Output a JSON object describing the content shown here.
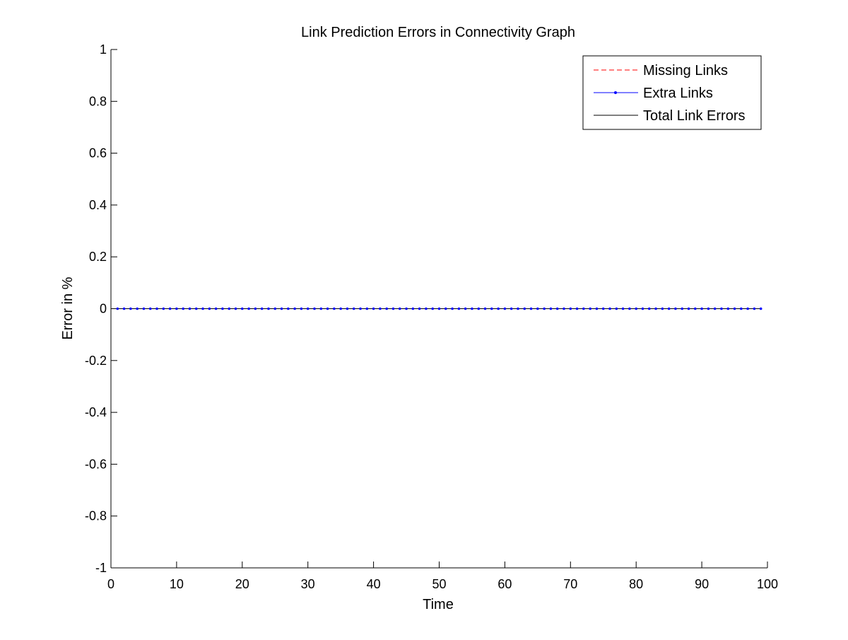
{
  "chart_data": {
    "type": "line",
    "title": "Link Prediction Errors in Connectivity Graph",
    "xlabel": "Time",
    "ylabel": "Error in %",
    "xlim": [
      0,
      100
    ],
    "ylim": [
      -1,
      1
    ],
    "xticks": [
      0,
      10,
      20,
      30,
      40,
      50,
      60,
      70,
      80,
      90,
      100
    ],
    "yticks": [
      -1,
      -0.8,
      -0.6,
      -0.4,
      -0.2,
      0,
      0.2,
      0.4,
      0.6,
      0.8,
      1
    ],
    "xtick_labels": [
      "0",
      "10",
      "20",
      "30",
      "40",
      "50",
      "60",
      "70",
      "80",
      "90",
      "100"
    ],
    "ytick_labels": [
      "-1",
      "-0.8",
      "-0.6",
      "-0.4",
      "-0.2",
      "0",
      "0.2",
      "0.4",
      "0.6",
      "0.8",
      "1"
    ],
    "grid": false,
    "legend_position": "top-right",
    "x": [
      1,
      2,
      3,
      4,
      5,
      6,
      7,
      8,
      9,
      10,
      11,
      12,
      13,
      14,
      15,
      16,
      17,
      18,
      19,
      20,
      21,
      22,
      23,
      24,
      25,
      26,
      27,
      28,
      29,
      30,
      31,
      32,
      33,
      34,
      35,
      36,
      37,
      38,
      39,
      40,
      41,
      42,
      43,
      44,
      45,
      46,
      47,
      48,
      49,
      50,
      51,
      52,
      53,
      54,
      55,
      56,
      57,
      58,
      59,
      60,
      61,
      62,
      63,
      64,
      65,
      66,
      67,
      68,
      69,
      70,
      71,
      72,
      73,
      74,
      75,
      76,
      77,
      78,
      79,
      80,
      81,
      82,
      83,
      84,
      85,
      86,
      87,
      88,
      89,
      90,
      91,
      92,
      93,
      94,
      95,
      96,
      97,
      98,
      99
    ],
    "series": [
      {
        "name": "Missing Links",
        "color": "#ff0000",
        "line_style": "dashed",
        "marker": "none",
        "values": [
          0,
          0,
          0,
          0,
          0,
          0,
          0,
          0,
          0,
          0,
          0,
          0,
          0,
          0,
          0,
          0,
          0,
          0,
          0,
          0,
          0,
          0,
          0,
          0,
          0,
          0,
          0,
          0,
          0,
          0,
          0,
          0,
          0,
          0,
          0,
          0,
          0,
          0,
          0,
          0,
          0,
          0,
          0,
          0,
          0,
          0,
          0,
          0,
          0,
          0,
          0,
          0,
          0,
          0,
          0,
          0,
          0,
          0,
          0,
          0,
          0,
          0,
          0,
          0,
          0,
          0,
          0,
          0,
          0,
          0,
          0,
          0,
          0,
          0,
          0,
          0,
          0,
          0,
          0,
          0,
          0,
          0,
          0,
          0,
          0,
          0,
          0,
          0,
          0,
          0,
          0,
          0,
          0,
          0,
          0,
          0,
          0,
          0,
          0
        ]
      },
      {
        "name": "Extra Links",
        "color": "#0000ff",
        "line_style": "solid",
        "marker": "dot",
        "values": [
          0,
          0,
          0,
          0,
          0,
          0,
          0,
          0,
          0,
          0,
          0,
          0,
          0,
          0,
          0,
          0,
          0,
          0,
          0,
          0,
          0,
          0,
          0,
          0,
          0,
          0,
          0,
          0,
          0,
          0,
          0,
          0,
          0,
          0,
          0,
          0,
          0,
          0,
          0,
          0,
          0,
          0,
          0,
          0,
          0,
          0,
          0,
          0,
          0,
          0,
          0,
          0,
          0,
          0,
          0,
          0,
          0,
          0,
          0,
          0,
          0,
          0,
          0,
          0,
          0,
          0,
          0,
          0,
          0,
          0,
          0,
          0,
          0,
          0,
          0,
          0,
          0,
          0,
          0,
          0,
          0,
          0,
          0,
          0,
          0,
          0,
          0,
          0,
          0,
          0,
          0,
          0,
          0,
          0,
          0,
          0,
          0,
          0,
          0
        ]
      },
      {
        "name": "Total Link Errors",
        "color": "#000000",
        "line_style": "solid",
        "marker": "none",
        "values": [
          0,
          0,
          0,
          0,
          0,
          0,
          0,
          0,
          0,
          0,
          0,
          0,
          0,
          0,
          0,
          0,
          0,
          0,
          0,
          0,
          0,
          0,
          0,
          0,
          0,
          0,
          0,
          0,
          0,
          0,
          0,
          0,
          0,
          0,
          0,
          0,
          0,
          0,
          0,
          0,
          0,
          0,
          0,
          0,
          0,
          0,
          0,
          0,
          0,
          0,
          0,
          0,
          0,
          0,
          0,
          0,
          0,
          0,
          0,
          0,
          0,
          0,
          0,
          0,
          0,
          0,
          0,
          0,
          0,
          0,
          0,
          0,
          0,
          0,
          0,
          0,
          0,
          0,
          0,
          0,
          0,
          0,
          0,
          0,
          0,
          0,
          0,
          0,
          0,
          0,
          0,
          0,
          0,
          0,
          0,
          0,
          0,
          0,
          0
        ]
      }
    ]
  }
}
